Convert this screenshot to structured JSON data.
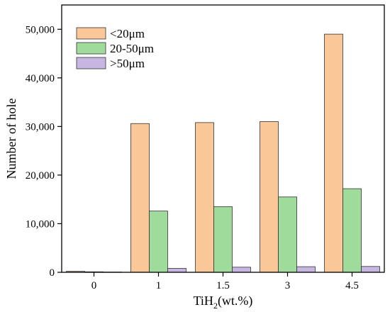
{
  "chart_data": {
    "type": "bar",
    "title": "",
    "xlabel": {
      "base": "TiH",
      "sub": "2",
      "rest": "(wt.%)"
    },
    "ylabel": "Number of hole",
    "categories": [
      "0",
      "1",
      "1.5",
      "3",
      "4.5"
    ],
    "ylim": [
      0,
      55000
    ],
    "yticks": [
      0,
      10000,
      20000,
      30000,
      40000,
      50000
    ],
    "ytick_labels": [
      "0",
      "10,000",
      "20,000",
      "30,000",
      "40,000",
      "50,000"
    ],
    "grid": false,
    "legend_position": "top-left",
    "series": [
      {
        "name": "<20μm",
        "color": "#FAC898",
        "values": [
          200,
          30600,
          30800,
          31000,
          49000
        ]
      },
      {
        "name": "20-50μm",
        "color": "#9FDB9B",
        "values": [
          100,
          12600,
          13500,
          15500,
          17200
        ]
      },
      {
        "name": ">50μm",
        "color": "#C8B6E2",
        "values": [
          50,
          800,
          1050,
          1150,
          1200
        ]
      }
    ]
  }
}
